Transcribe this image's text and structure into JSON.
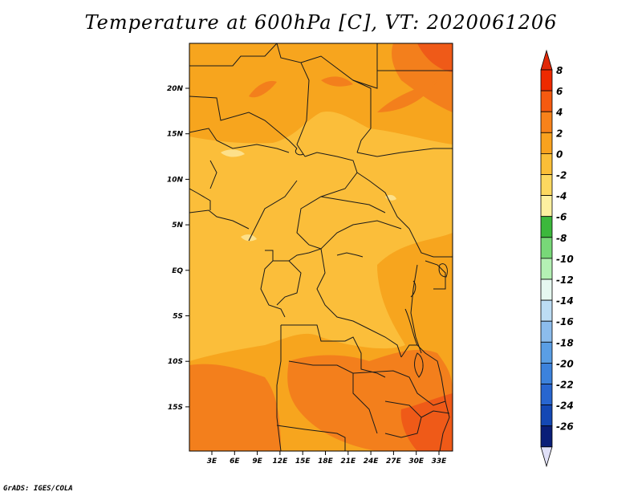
{
  "title": "Temperature at 600hPa [C], VT: 2020061206",
  "credit": "GrADS: IGES/COLA",
  "lat_ticks": [
    "20N",
    "15N",
    "10N",
    "5N",
    "EQ",
    "5S",
    "10S",
    "15S"
  ],
  "lon_ticks": [
    "3E",
    "6E",
    "9E",
    "12E",
    "15E",
    "18E",
    "21E",
    "24E",
    "27E",
    "30E",
    "33E"
  ],
  "colorbar": {
    "labels": [
      "8",
      "6",
      "4",
      "2",
      "0",
      "-2",
      "-4",
      "-6",
      "-8",
      "-10",
      "-12",
      "-14",
      "-16",
      "-18",
      "-20",
      "-22",
      "-24",
      "-26"
    ],
    "colors": [
      "#ee2a00",
      "#f55a10",
      "#f7821a",
      "#f9a21e",
      "#fbbe37",
      "#fcd860",
      "#fdf0a0",
      "#3cb83c",
      "#78d878",
      "#b4f0b4",
      "#e6f8f0",
      "#bcdcf4",
      "#8cbcec",
      "#5a9ee4",
      "#3c82dc",
      "#2866d0",
      "#1448b4",
      "#0a1e78"
    ],
    "top_arrow_color": "#e02808",
    "bottom_arrow_color": "#e0e0f8"
  },
  "map_palette": {
    "base": "#f7a51e",
    "light": "#fbbe3a",
    "dark": "#f37f1c",
    "darker": "#ef5a18",
    "pale": "#fde08a"
  }
}
